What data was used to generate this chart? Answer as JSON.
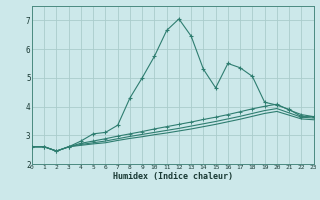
{
  "xlabel": "Humidex (Indice chaleur)",
  "bg_color": "#cce8ea",
  "grid_color": "#aacccc",
  "line_color": "#2e7d70",
  "xlim": [
    0,
    23
  ],
  "ylim": [
    2.0,
    7.5
  ],
  "xticks": [
    0,
    1,
    2,
    3,
    4,
    5,
    6,
    7,
    8,
    9,
    10,
    11,
    12,
    13,
    14,
    15,
    16,
    17,
    18,
    19,
    20,
    21,
    22,
    23
  ],
  "yticks": [
    2,
    3,
    4,
    5,
    6,
    7
  ],
  "line1_x": [
    0,
    1,
    2,
    3,
    4,
    5,
    6,
    7,
    8,
    9,
    10,
    11,
    12,
    13,
    14,
    15,
    16,
    17,
    18,
    19,
    20,
    21,
    22,
    23
  ],
  "line1_y": [
    2.6,
    2.6,
    2.45,
    2.6,
    2.8,
    3.05,
    3.1,
    3.35,
    4.3,
    5.0,
    5.75,
    6.65,
    7.05,
    6.45,
    5.3,
    4.65,
    5.5,
    5.35,
    5.05,
    4.15,
    4.05,
    3.9,
    3.65,
    3.65
  ],
  "line2_x": [
    0,
    1,
    2,
    3,
    4,
    5,
    6,
    7,
    8,
    9,
    10,
    11,
    12,
    13,
    14,
    15,
    16,
    17,
    18,
    19,
    20,
    21,
    22,
    23
  ],
  "line2_y": [
    2.6,
    2.6,
    2.45,
    2.6,
    2.72,
    2.8,
    2.88,
    2.97,
    3.05,
    3.13,
    3.22,
    3.3,
    3.38,
    3.46,
    3.55,
    3.63,
    3.72,
    3.82,
    3.92,
    4.01,
    4.08,
    3.88,
    3.72,
    3.65
  ],
  "line3_x": [
    0,
    1,
    2,
    3,
    4,
    5,
    6,
    7,
    8,
    9,
    10,
    11,
    12,
    13,
    14,
    15,
    16,
    17,
    18,
    19,
    20,
    21,
    22,
    23
  ],
  "line3_y": [
    2.6,
    2.6,
    2.45,
    2.6,
    2.68,
    2.74,
    2.8,
    2.88,
    2.96,
    3.03,
    3.1,
    3.17,
    3.24,
    3.32,
    3.4,
    3.48,
    3.57,
    3.66,
    3.76,
    3.86,
    3.93,
    3.78,
    3.63,
    3.6
  ],
  "line4_x": [
    0,
    1,
    2,
    3,
    4,
    5,
    6,
    7,
    8,
    9,
    10,
    11,
    12,
    13,
    14,
    15,
    16,
    17,
    18,
    19,
    20,
    21,
    22,
    23
  ],
  "line4_y": [
    2.6,
    2.6,
    2.45,
    2.6,
    2.65,
    2.7,
    2.74,
    2.82,
    2.89,
    2.95,
    3.02,
    3.08,
    3.15,
    3.22,
    3.3,
    3.38,
    3.47,
    3.56,
    3.66,
    3.76,
    3.83,
    3.7,
    3.57,
    3.54
  ]
}
